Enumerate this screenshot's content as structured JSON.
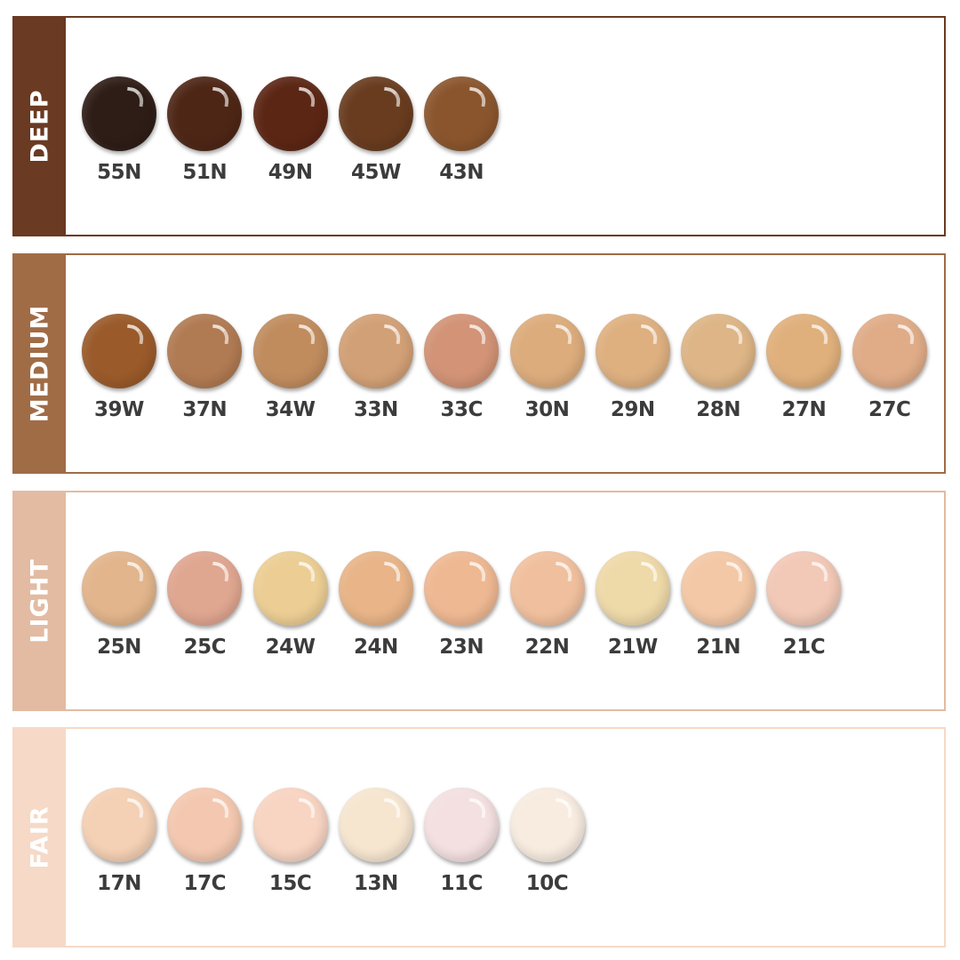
{
  "groups": [
    {
      "label": "DEEP",
      "color": "#6a3a22",
      "shades": [
        {
          "name": "55N",
          "color": "#2e1d16"
        },
        {
          "name": "51N",
          "color": "#4e2616"
        },
        {
          "name": "49N",
          "color": "#5c2614"
        },
        {
          "name": "45W",
          "color": "#693c1f"
        },
        {
          "name": "43N",
          "color": "#8a552d"
        }
      ]
    },
    {
      "label": "MEDIUM",
      "color": "#a06c46",
      "shades": [
        {
          "name": "39W",
          "color": "#9a5a2a"
        },
        {
          "name": "37N",
          "color": "#b07a52"
        },
        {
          "name": "34W",
          "color": "#c08c5e"
        },
        {
          "name": "33N",
          "color": "#d2a076"
        },
        {
          "name": "33C",
          "color": "#d29376"
        },
        {
          "name": "30N",
          "color": "#dcac7c"
        },
        {
          "name": "29N",
          "color": "#deb080"
        },
        {
          "name": "28N",
          "color": "#ddb586"
        },
        {
          "name": "27N",
          "color": "#e0b07c"
        },
        {
          "name": "27C",
          "color": "#e0ac88"
        }
      ]
    },
    {
      "label": "LIGHT",
      "color": "#e2bba2",
      "shades": [
        {
          "name": "25N",
          "color": "#e2b58c"
        },
        {
          "name": "25C",
          "color": "#dfa690"
        },
        {
          "name": "24W",
          "color": "#ecce94"
        },
        {
          "name": "24N",
          "color": "#e8b488"
        },
        {
          "name": "23N",
          "color": "#eeb892"
        },
        {
          "name": "22N",
          "color": "#f0c09e"
        },
        {
          "name": "21W",
          "color": "#eed9a8"
        },
        {
          "name": "21N",
          "color": "#f3c8a6"
        },
        {
          "name": "21C",
          "color": "#f2c8b6"
        }
      ]
    },
    {
      "label": "FAIR",
      "color": "#f6d9c6",
      "shades": [
        {
          "name": "17N",
          "color": "#f4d0b4"
        },
        {
          "name": "17C",
          "color": "#f4c8b0"
        },
        {
          "name": "15C",
          "color": "#f8d4c2"
        },
        {
          "name": "13N",
          "color": "#f6e6d0"
        },
        {
          "name": "11C",
          "color": "#f4e0e0"
        },
        {
          "name": "10C",
          "color": "#f8ece0"
        }
      ]
    }
  ]
}
